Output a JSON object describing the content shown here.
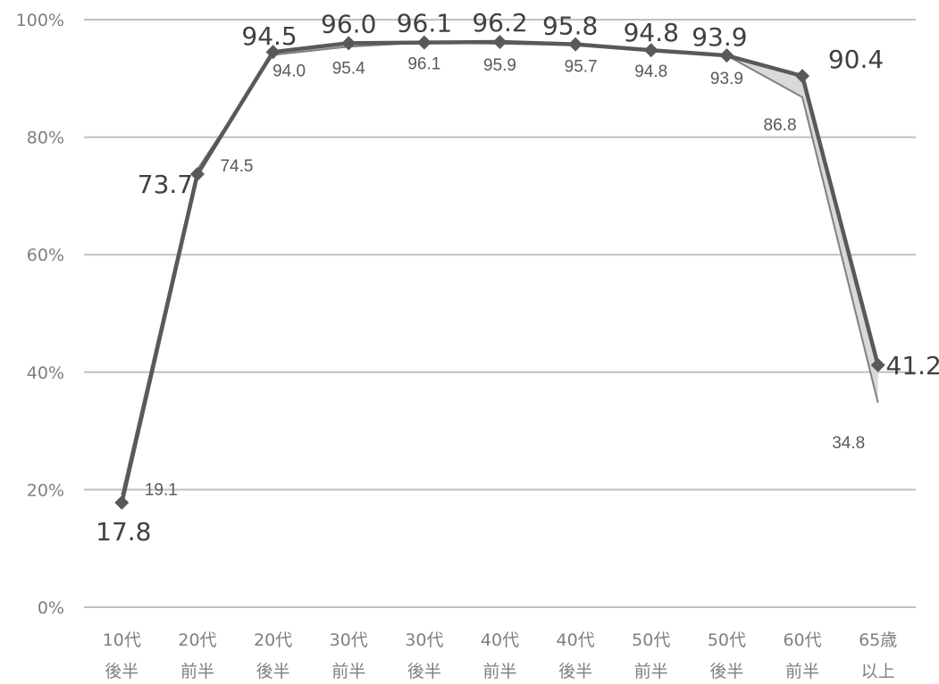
{
  "chart_data": {
    "type": "line",
    "categories": [
      [
        "10代",
        "後半"
      ],
      [
        "20代",
        "前半"
      ],
      [
        "20代",
        "後半"
      ],
      [
        "30代",
        "前半"
      ],
      [
        "30代",
        "後半"
      ],
      [
        "40代",
        "前半"
      ],
      [
        "40代",
        "後半"
      ],
      [
        "50代",
        "前半"
      ],
      [
        "50代",
        "後半"
      ],
      [
        "60代",
        "前半"
      ],
      [
        "65歳",
        "以上"
      ]
    ],
    "series": [
      {
        "values": [
          17.8,
          73.7,
          94.5,
          96.0,
          96.1,
          96.2,
          95.8,
          94.8,
          93.9,
          90.4,
          41.2
        ],
        "labels": [
          "17.8",
          "73.7",
          "94.5",
          "96.0",
          "96.1",
          "96.2",
          "95.8",
          "94.8",
          "93.9",
          "90.4",
          "41.2"
        ],
        "color": "#595959",
        "marker": "diamond"
      },
      {
        "values": [
          19.1,
          74.5,
          94.0,
          95.4,
          96.1,
          95.9,
          95.7,
          94.8,
          93.9,
          86.8,
          34.8
        ],
        "labels": [
          "19.1",
          "74.5",
          "94.0",
          "95.4",
          "96.1",
          "95.9",
          "95.7",
          "94.8",
          "93.9",
          "86.8",
          "34.8"
        ],
        "color": "#808080"
      }
    ],
    "yticks": [
      "0%",
      "20%",
      "40%",
      "60%",
      "80%",
      "100%"
    ],
    "ylim": [
      0,
      100
    ],
    "grid": true,
    "fill_between": "#d9d9d9",
    "gridline_color": "#bfbfbf"
  }
}
